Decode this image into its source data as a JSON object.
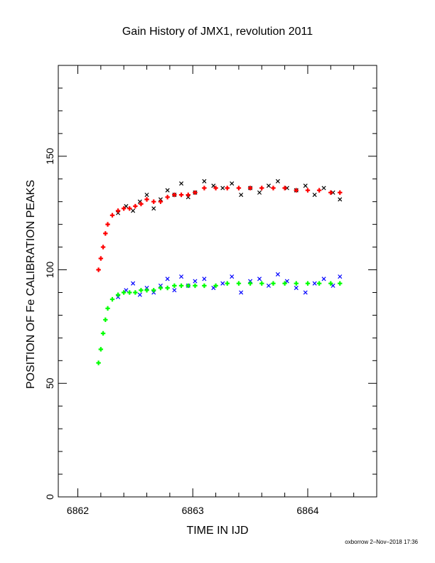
{
  "chart_data": {
    "type": "scatter",
    "title": "Gain History of JMX1, revolution 2011",
    "xlabel": "TIME IN IJD",
    "ylabel": "POSITION OF Fe CALIBRATION PEAKS",
    "xlim": [
      6861.83,
      6864.6
    ],
    "ylim": [
      0,
      190
    ],
    "xticks": [
      6862,
      6863,
      6864
    ],
    "xtick_labels": [
      "6862",
      "6863",
      "6864"
    ],
    "yticks": [
      0,
      50,
      100,
      150
    ],
    "ytick_labels": [
      "0",
      "50",
      "100",
      "150"
    ],
    "grid": false,
    "series": [
      {
        "marker": "x",
        "color": "#000000",
        "x": [
          6862.35,
          6862.42,
          6862.48,
          6862.54,
          6862.6,
          6862.66,
          6862.72,
          6862.78,
          6862.84,
          6862.9,
          6862.96,
          6863.02,
          6863.1,
          6863.18,
          6863.26,
          6863.34,
          6863.42,
          6863.5,
          6863.58,
          6863.66,
          6863.74,
          6863.82,
          6863.9,
          6863.98,
          6864.06,
          6864.14,
          6864.22,
          6864.28
        ],
        "y": [
          125,
          128,
          126,
          130,
          133,
          127,
          131,
          135,
          133,
          138,
          132,
          134,
          139,
          137,
          136,
          138,
          133,
          136,
          134,
          137,
          139,
          136,
          135,
          137,
          133,
          136,
          134,
          131
        ]
      },
      {
        "marker": "+",
        "color": "#ff0000",
        "x": [
          6862.18,
          6862.2,
          6862.22,
          6862.24,
          6862.26,
          6862.3,
          6862.35,
          6862.4,
          6862.45,
          6862.5,
          6862.55,
          6862.6,
          6862.66,
          6862.72,
          6862.78,
          6862.84,
          6862.9,
          6862.96,
          6863.02,
          6863.1,
          6863.2,
          6863.3,
          6863.4,
          6863.5,
          6863.6,
          6863.7,
          6863.8,
          6863.9,
          6864.0,
          6864.1,
          6864.2,
          6864.28
        ],
        "y": [
          100,
          105,
          110,
          116,
          120,
          124,
          126,
          127,
          127,
          128,
          129,
          131,
          130,
          130,
          132,
          133,
          133,
          133,
          134,
          136,
          136,
          136,
          136,
          136,
          136,
          136,
          136,
          135,
          135,
          135,
          134,
          134
        ]
      },
      {
        "marker": "x",
        "color": "#0000ff",
        "x": [
          6862.35,
          6862.42,
          6862.48,
          6862.54,
          6862.6,
          6862.66,
          6862.72,
          6862.78,
          6862.84,
          6862.9,
          6862.96,
          6863.02,
          6863.1,
          6863.18,
          6863.26,
          6863.34,
          6863.42,
          6863.5,
          6863.58,
          6863.66,
          6863.74,
          6863.82,
          6863.9,
          6863.98,
          6864.06,
          6864.14,
          6864.22,
          6864.28
        ],
        "y": [
          88,
          91,
          94,
          89,
          92,
          90,
          93,
          96,
          91,
          97,
          93,
          95,
          96,
          92,
          94,
          97,
          90,
          95,
          96,
          93,
          98,
          95,
          92,
          90,
          94,
          96,
          93,
          97
        ]
      },
      {
        "marker": "+",
        "color": "#00ff00",
        "x": [
          6862.18,
          6862.2,
          6862.22,
          6862.24,
          6862.26,
          6862.3,
          6862.35,
          6862.4,
          6862.45,
          6862.5,
          6862.55,
          6862.6,
          6862.66,
          6862.72,
          6862.78,
          6862.84,
          6862.9,
          6862.96,
          6863.02,
          6863.1,
          6863.2,
          6863.3,
          6863.4,
          6863.5,
          6863.6,
          6863.7,
          6863.8,
          6863.9,
          6864.0,
          6864.1,
          6864.2,
          6864.28
        ],
        "y": [
          59,
          65,
          72,
          78,
          83,
          87,
          89,
          90,
          90,
          90,
          91,
          91,
          91,
          92,
          92,
          93,
          93,
          93,
          93,
          93,
          93,
          94,
          94,
          94,
          94,
          94,
          94,
          94,
          94,
          94,
          94,
          94
        ]
      }
    ]
  },
  "footer": "oxborrow  2–Nov–2018 17:36"
}
